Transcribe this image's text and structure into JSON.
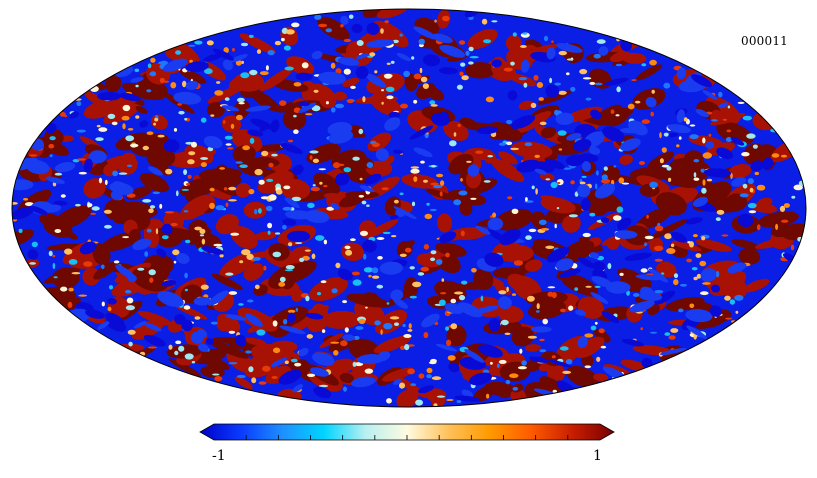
{
  "map": {
    "label": "000011",
    "projection": "mollweide",
    "colormap": [
      "#0a0ad6",
      "#1a3cf0",
      "#1e78ff",
      "#18bff5",
      "#9fe8ee",
      "#fff6d8",
      "#ffc060",
      "#ff8a10",
      "#e83a06",
      "#a81204",
      "#6e0800"
    ]
  },
  "colorbar": {
    "min_label": "-1",
    "max_label": "1",
    "colors": [
      "#0000c8",
      "#0a3cff",
      "#1e90ff",
      "#00d4ff",
      "#b8f0f0",
      "#fffbe0",
      "#ffc15a",
      "#ff9a00",
      "#ff5a00",
      "#c81e00",
      "#780000"
    ]
  }
}
